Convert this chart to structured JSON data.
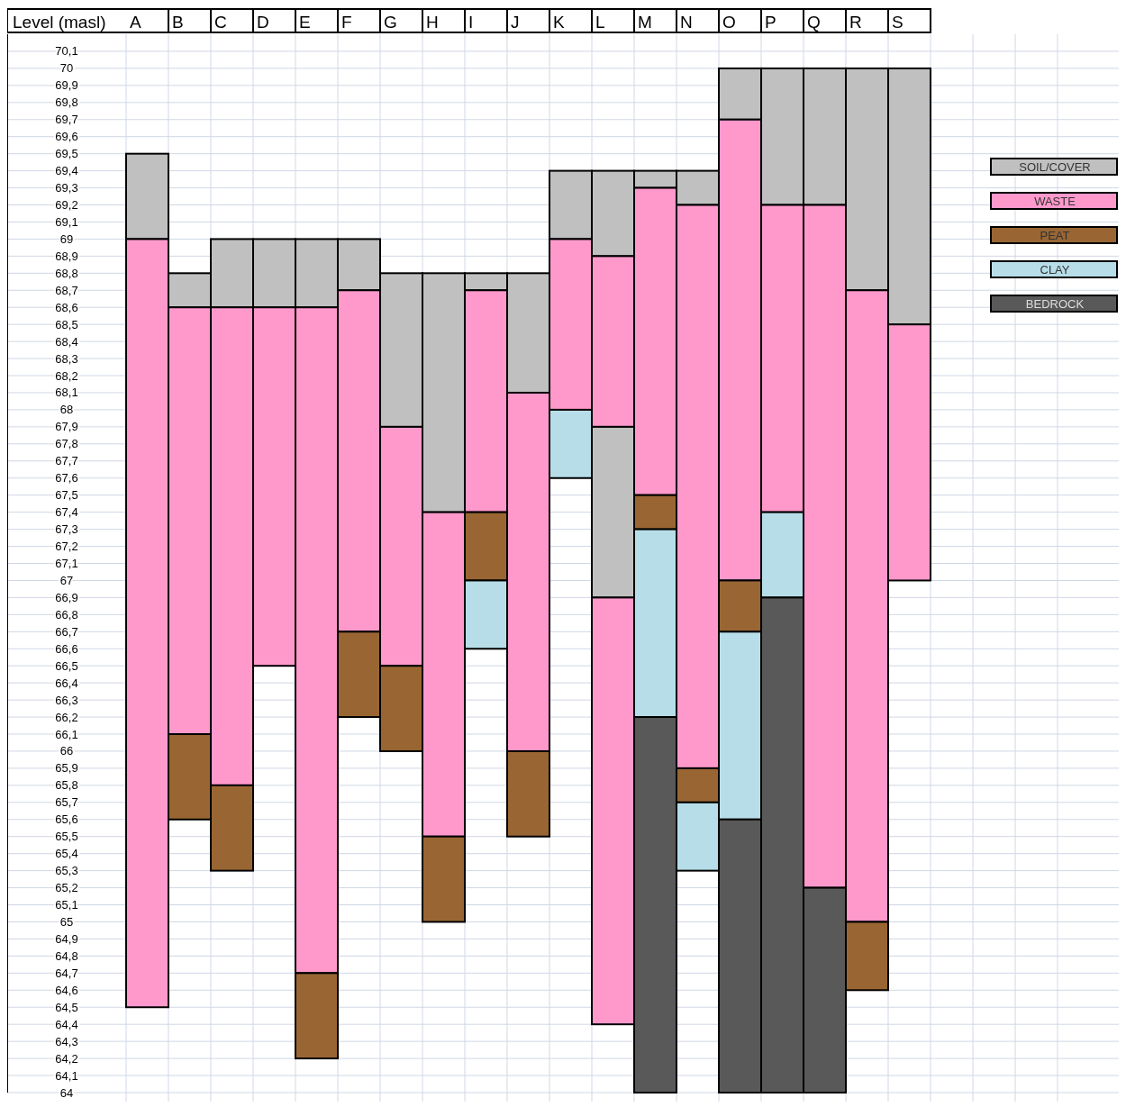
{
  "chart_data": {
    "type": "bar",
    "ylabel": "Level (masl)",
    "categories": [
      "A",
      "B",
      "C",
      "D",
      "E",
      "F",
      "G",
      "H",
      "I",
      "J",
      "K",
      "L",
      "M",
      "N",
      "O",
      "P",
      "Q",
      "R",
      "S"
    ],
    "series": [
      {
        "name": "SOIL/COVER",
        "color": "#c0c0c0",
        "base": [
          69.0,
          68.6,
          68.6,
          68.6,
          68.6,
          68.7,
          67.9,
          67.4,
          68.7,
          68.1,
          69.0,
          68.9,
          69.3,
          69.2,
          69.7,
          69.2,
          69.2,
          68.7,
          68.5
        ],
        "values": [
          0.5,
          0.2,
          0.4,
          0.4,
          0.4,
          0.3,
          0.9,
          1.4,
          0.1,
          0.7,
          0.4,
          0.5,
          0.1,
          0.2,
          0.3,
          0.8,
          0.8,
          1.3,
          1.5
        ]
      },
      {
        "name": "WASTE",
        "color": "#ff99cc",
        "base": [
          64.5,
          66.1,
          65.8,
          66.5,
          64.7,
          66.7,
          66.5,
          65.5,
          67.4,
          66.0,
          68.0,
          67.9,
          67.5,
          65.9,
          67.0,
          67.4,
          65.2,
          65.0,
          67.0
        ],
        "values": [
          4.5,
          2.5,
          2.8,
          2.1,
          3.9,
          2.0,
          1.4,
          1.9,
          1.3,
          2.1,
          1.0,
          1.0,
          1.8,
          3.3,
          2.7,
          1.8,
          4.0,
          3.7,
          1.5
        ]
      },
      {
        "color": "#c0c0c0",
        "base": [
          null,
          null,
          null,
          null,
          null,
          null,
          null,
          null,
          null,
          null,
          null,
          66.9,
          null,
          null,
          null,
          null,
          null,
          null,
          null
        ],
        "values": [
          null,
          null,
          null,
          null,
          null,
          null,
          null,
          null,
          null,
          null,
          null,
          1.0,
          null,
          null,
          null,
          null,
          null,
          null,
          null
        ]
      },
      {
        "color": "#ff99cc",
        "base": [
          null,
          null,
          null,
          null,
          null,
          null,
          null,
          null,
          null,
          null,
          null,
          64.4,
          null,
          null,
          null,
          null,
          null,
          null,
          null
        ],
        "values": [
          null,
          null,
          null,
          null,
          null,
          null,
          null,
          null,
          null,
          null,
          null,
          2.5,
          null,
          null,
          null,
          null,
          null,
          null,
          null
        ]
      },
      {
        "name": "PEAT",
        "color": "#996633",
        "base": [
          null,
          65.6,
          65.3,
          null,
          64.2,
          66.2,
          66.0,
          65.0,
          67.0,
          65.5,
          null,
          null,
          67.3,
          65.7,
          66.7,
          null,
          null,
          64.6,
          null
        ],
        "values": [
          null,
          0.5,
          0.5,
          null,
          0.5,
          0.5,
          0.5,
          0.5,
          0.4,
          0.5,
          null,
          null,
          0.2,
          0.2,
          0.3,
          null,
          null,
          0.4,
          null
        ]
      },
      {
        "name": "CLAY",
        "color": "#b7dee8",
        "base": [
          null,
          null,
          null,
          null,
          null,
          null,
          null,
          null,
          66.6,
          null,
          67.6,
          null,
          66.2,
          65.3,
          65.6,
          66.9,
          null,
          null,
          null
        ],
        "values": [
          null,
          null,
          null,
          null,
          null,
          null,
          null,
          null,
          0.4,
          null,
          0.4,
          null,
          1.1,
          0.4,
          1.1,
          0.5,
          null,
          null,
          null
        ]
      },
      {
        "name": "BEDROCK",
        "color": "#595959",
        "base": [
          null,
          null,
          null,
          null,
          null,
          null,
          null,
          null,
          null,
          null,
          null,
          null,
          64.0,
          null,
          64.0,
          64.0,
          64.0,
          null,
          null
        ],
        "values": [
          null,
          null,
          null,
          null,
          null,
          null,
          null,
          null,
          null,
          null,
          null,
          null,
          2.2,
          null,
          1.6,
          2.9,
          1.2,
          null,
          null
        ]
      }
    ],
    "ylim": [
      64,
      70.2
    ],
    "yticks": [
      64,
      {
        "value": 64.1,
        "label": "64,1"
      },
      {
        "value": 64.2,
        "label": "64,2"
      },
      {
        "value": 64.3,
        "label": "64,3"
      },
      {
        "value": 64.4,
        "label": "64,4"
      },
      {
        "value": 64.5,
        "label": "64,5"
      },
      {
        "value": 64.6,
        "label": "64,6"
      },
      {
        "value": 64.7,
        "label": "64,7"
      },
      {
        "value": 64.8,
        "label": "64,8"
      },
      {
        "value": 64.9,
        "label": "64,9"
      },
      65,
      {
        "value": 65.1,
        "label": "65,1"
      },
      {
        "value": 65.2,
        "label": "65,2"
      },
      {
        "value": 65.3,
        "label": "65,3"
      },
      {
        "value": 65.4,
        "label": "65,4"
      },
      {
        "value": 65.5,
        "label": "65,5"
      },
      {
        "value": 65.6,
        "label": "65,6"
      },
      {
        "value": 65.7,
        "label": "65,7"
      },
      {
        "value": 65.8,
        "label": "65,8"
      },
      {
        "value": 65.9,
        "label": "65,9"
      },
      66,
      {
        "value": 66.1,
        "label": "66,1"
      },
      {
        "value": 66.2,
        "label": "66,2"
      },
      {
        "value": 66.3,
        "label": "66,3"
      },
      {
        "value": 66.4,
        "label": "66,4"
      },
      {
        "value": 66.5,
        "label": "66,5"
      },
      {
        "value": 66.6,
        "label": "66,6"
      },
      {
        "value": 66.7,
        "label": "66,7"
      },
      {
        "value": 66.8,
        "label": "66,8"
      },
      {
        "value": 66.9,
        "label": "66,9"
      },
      67,
      {
        "value": 67.1,
        "label": "67,1"
      },
      {
        "value": 67.2,
        "label": "67,2"
      },
      {
        "value": 67.3,
        "label": "67,3"
      },
      {
        "value": 67.4,
        "label": "67,4"
      },
      {
        "value": 67.5,
        "label": "67,5"
      },
      {
        "value": 67.6,
        "label": "67,6"
      },
      {
        "value": 67.7,
        "label": "67,7"
      },
      {
        "value": 67.8,
        "label": "67,8"
      },
      {
        "value": 67.9,
        "label": "67,9"
      },
      68,
      {
        "value": 68.1,
        "label": "68,1"
      },
      {
        "value": 68.2,
        "label": "68,2"
      },
      {
        "value": 68.3,
        "label": "68,3"
      },
      {
        "value": 68.4,
        "label": "68,4"
      },
      {
        "value": 68.5,
        "label": "68,5"
      },
      {
        "value": 68.6,
        "label": "68,6"
      },
      {
        "value": 68.7,
        "label": "68,7"
      },
      {
        "value": 68.8,
        "label": "68,8"
      },
      {
        "value": 68.9,
        "label": "68,9"
      },
      69,
      {
        "value": 69.1,
        "label": "69,1"
      },
      {
        "value": 69.2,
        "label": "69,2"
      },
      {
        "value": 69.3,
        "label": "69,3"
      },
      {
        "value": 69.4,
        "label": "69,4"
      },
      {
        "value": 69.5,
        "label": "69,5"
      },
      {
        "value": 69.6,
        "label": "69,6"
      },
      {
        "value": 69.7,
        "label": "69,7"
      },
      {
        "value": 69.8,
        "label": "69,8"
      },
      {
        "value": 69.9,
        "label": "69,9"
      },
      70,
      {
        "value": 70.1,
        "label": "70,1"
      }
    ],
    "grid": true,
    "legend": "right"
  }
}
